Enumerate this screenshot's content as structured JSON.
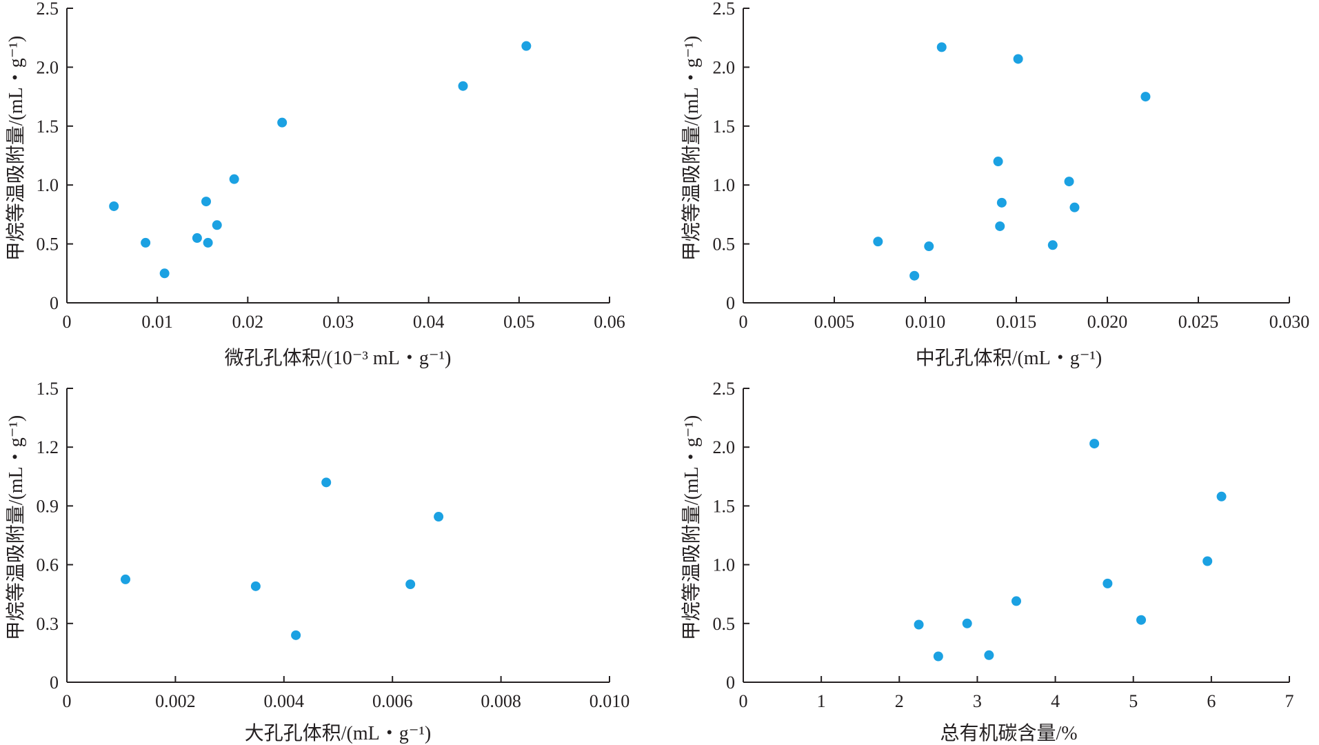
{
  "chart_data": [
    {
      "type": "scatter",
      "xlabel": "微孔孔体积/(10⁻³ mL・g⁻¹)",
      "ylabel": "甲烷等温吸附量/(mL・g⁻¹)",
      "xlim": [
        0,
        0.06
      ],
      "ylim": [
        0,
        2.5
      ],
      "xticks": [
        "0",
        "0.01",
        "0.02",
        "0.03",
        "0.04",
        "0.05",
        "0.06"
      ],
      "yticks": [
        "0",
        "0.5",
        "1.0",
        "1.5",
        "2.0",
        "2.5"
      ],
      "color": "#1ba1e2",
      "points": [
        {
          "x": 0.0052,
          "y": 0.82
        },
        {
          "x": 0.0087,
          "y": 0.51
        },
        {
          "x": 0.0108,
          "y": 0.25
        },
        {
          "x": 0.0144,
          "y": 0.55
        },
        {
          "x": 0.0154,
          "y": 0.86
        },
        {
          "x": 0.0156,
          "y": 0.51
        },
        {
          "x": 0.0166,
          "y": 0.66
        },
        {
          "x": 0.0185,
          "y": 1.05
        },
        {
          "x": 0.0238,
          "y": 1.53
        },
        {
          "x": 0.0438,
          "y": 1.84
        },
        {
          "x": 0.0508,
          "y": 2.18
        }
      ]
    },
    {
      "type": "scatter",
      "xlabel": "中孔孔体积/(mL・g⁻¹)",
      "ylabel": "甲烷等温吸附量/(mL・g⁻¹)",
      "xlim": [
        0,
        0.03
      ],
      "ylim": [
        0,
        2.5
      ],
      "xticks": [
        "0",
        "0.005",
        "0.010",
        "0.015",
        "0.020",
        "0.025",
        "0.030"
      ],
      "yticks": [
        "0",
        "0.5",
        "1.0",
        "1.5",
        "2.0",
        "2.5"
      ],
      "color": "#1ba1e2",
      "points": [
        {
          "x": 0.0074,
          "y": 0.52
        },
        {
          "x": 0.0094,
          "y": 0.23
        },
        {
          "x": 0.0102,
          "y": 0.48
        },
        {
          "x": 0.0109,
          "y": 2.17
        },
        {
          "x": 0.014,
          "y": 1.2
        },
        {
          "x": 0.0141,
          "y": 0.65
        },
        {
          "x": 0.0142,
          "y": 0.85
        },
        {
          "x": 0.0151,
          "y": 2.07
        },
        {
          "x": 0.017,
          "y": 0.49
        },
        {
          "x": 0.0179,
          "y": 1.03
        },
        {
          "x": 0.0182,
          "y": 0.81
        },
        {
          "x": 0.0221,
          "y": 1.75
        }
      ]
    },
    {
      "type": "scatter",
      "xlabel": "大孔孔体积/(mL・g⁻¹)",
      "ylabel": "甲烷等温吸附量/(mL・g⁻¹)",
      "xlim": [
        0,
        0.01
      ],
      "ylim": [
        0,
        1.5
      ],
      "xticks": [
        "0",
        "0.002",
        "0.004",
        "0.006",
        "0.008",
        "0.010"
      ],
      "yticks": [
        "0",
        "0.3",
        "0.6",
        "0.9",
        "1.2",
        "1.5"
      ],
      "color": "#1ba1e2",
      "points": [
        {
          "x": 0.00108,
          "y": 0.525
        },
        {
          "x": 0.00348,
          "y": 0.49
        },
        {
          "x": 0.00422,
          "y": 0.24
        },
        {
          "x": 0.00478,
          "y": 1.02
        },
        {
          "x": 0.00633,
          "y": 0.5
        },
        {
          "x": 0.00685,
          "y": 0.845
        }
      ]
    },
    {
      "type": "scatter",
      "xlabel": "总有机碳含量/%",
      "ylabel": "甲烷等温吸附量/(mL・g⁻¹)",
      "xlim": [
        0,
        7
      ],
      "ylim": [
        0,
        2.5
      ],
      "xticks": [
        "0",
        "1",
        "2",
        "3",
        "4",
        "5",
        "6",
        "7"
      ],
      "yticks": [
        "0",
        "0.5",
        "1.0",
        "1.5",
        "2.0",
        "2.5"
      ],
      "color": "#1ba1e2",
      "points": [
        {
          "x": 2.25,
          "y": 0.49
        },
        {
          "x": 2.5,
          "y": 0.22
        },
        {
          "x": 2.87,
          "y": 0.5
        },
        {
          "x": 3.15,
          "y": 0.23
        },
        {
          "x": 3.5,
          "y": 0.69
        },
        {
          "x": 4.5,
          "y": 2.03
        },
        {
          "x": 4.67,
          "y": 0.84
        },
        {
          "x": 5.1,
          "y": 0.53
        },
        {
          "x": 5.95,
          "y": 1.03
        },
        {
          "x": 6.13,
          "y": 1.58
        }
      ]
    }
  ]
}
